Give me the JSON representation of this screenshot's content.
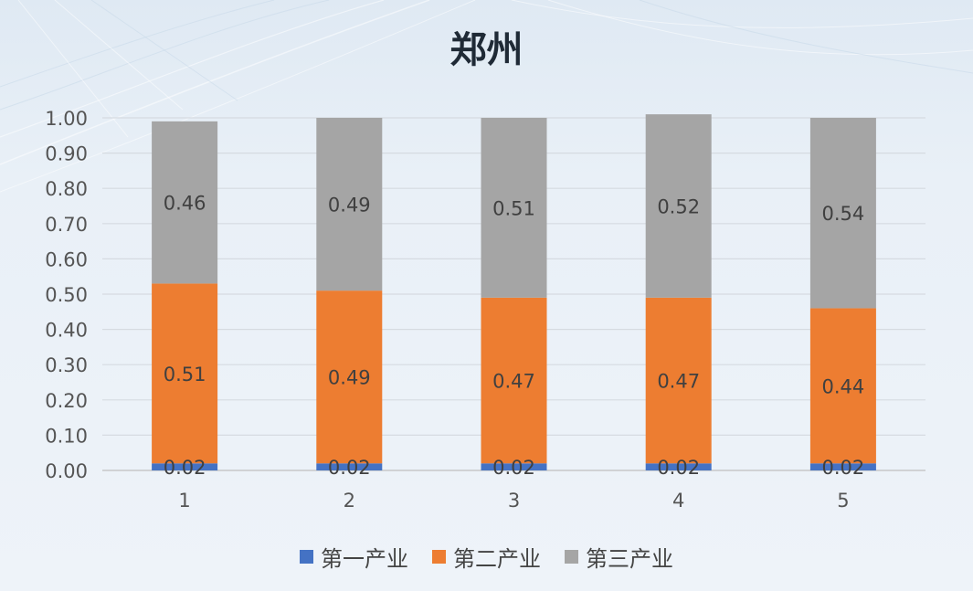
{
  "chart_data": {
    "type": "bar",
    "stacked": true,
    "title": "郑州",
    "categories": [
      "1",
      "2",
      "3",
      "4",
      "5"
    ],
    "series": [
      {
        "name": "第一产业",
        "color": "#4472c4",
        "values": [
          0.02,
          0.02,
          0.02,
          0.02,
          0.02
        ]
      },
      {
        "name": "第二产业",
        "color": "#ed7d31",
        "values": [
          0.51,
          0.49,
          0.47,
          0.47,
          0.44
        ]
      },
      {
        "name": "第三产业",
        "color": "#a5a5a5",
        "values": [
          0.46,
          0.49,
          0.51,
          0.52,
          0.54
        ]
      }
    ],
    "ylim": [
      0,
      1
    ],
    "yticks": [
      "0.00",
      "0.10",
      "0.20",
      "0.30",
      "0.40",
      "0.50",
      "0.60",
      "0.70",
      "0.80",
      "0.90",
      "1.00"
    ],
    "xlabel": "",
    "ylabel": "",
    "grid": true,
    "legend_position": "bottom",
    "data_labels": true
  }
}
